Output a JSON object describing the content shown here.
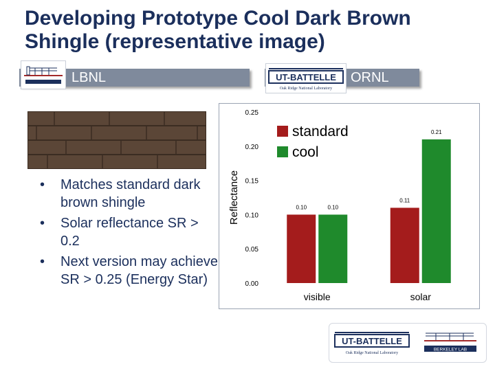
{
  "slide": {
    "title": "Developing Prototype Cool Dark Brown Shingle (representative image)"
  },
  "header": {
    "lbnl_label": "LBNL",
    "ornl_label": "ORNL"
  },
  "logos": {
    "ut_battelle": {
      "name": "UT-BATTELLE",
      "sub": "Oak Ridge National Laboratory"
    },
    "berkeley_lab": {
      "name": "BERKELEY LAB"
    }
  },
  "bullets": [
    "Matches standard dark brown shingle",
    "Solar reflectance SR > 0.2",
    "Next version may achieve SR > 0.25 (Energy Star)"
  ],
  "colors": {
    "title": "#1b2f5c",
    "bar": "#7f8a9c",
    "standard": "#a41c1c",
    "cool": "#1f8a2c"
  },
  "chart_data": {
    "type": "bar",
    "categories": [
      "visible",
      "solar"
    ],
    "series": [
      {
        "name": "standard",
        "values": [
          0.1,
          0.11
        ],
        "labels": [
          "0.10",
          "0.11"
        ],
        "color": "#a41c1c"
      },
      {
        "name": "cool",
        "values": [
          0.1,
          0.21
        ],
        "labels": [
          "0.10",
          "0.21"
        ],
        "color": "#1f8a2c"
      }
    ],
    "ylabel": "Reflectance",
    "ylim": [
      0,
      0.25
    ],
    "yticks": [
      "0.00",
      "0.05",
      "0.10",
      "0.15",
      "0.20",
      "0.25"
    ],
    "grid": false,
    "legend": "top-left"
  }
}
